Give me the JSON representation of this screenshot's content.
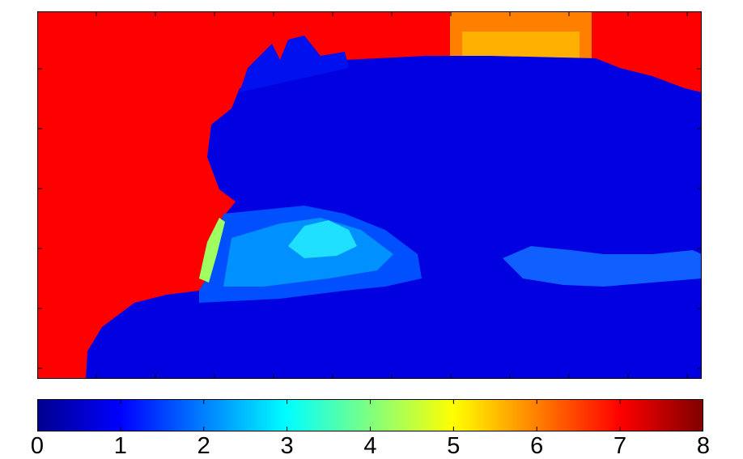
{
  "chart_data": [
    {
      "type": "heatmap",
      "title": "",
      "xlabel": "",
      "ylabel": "",
      "ticks_visible": true,
      "tick_labels_visible": false,
      "description_of_regions": [
        {
          "region": "left and top background",
          "value": 7
        },
        {
          "region": "top-center patch",
          "value": 6
        },
        {
          "region": "large central object",
          "value": 1
        },
        {
          "region": "highlight on lower-left of object",
          "value": 3
        },
        {
          "region": "thin edge near left boundary",
          "value": 4
        }
      ]
    },
    {
      "type": "colorbar",
      "colormap": "jet",
      "range": [
        0,
        8
      ],
      "ticks": [
        "0",
        "1",
        "2",
        "3",
        "4",
        "5",
        "6",
        "7",
        "8"
      ]
    }
  ]
}
